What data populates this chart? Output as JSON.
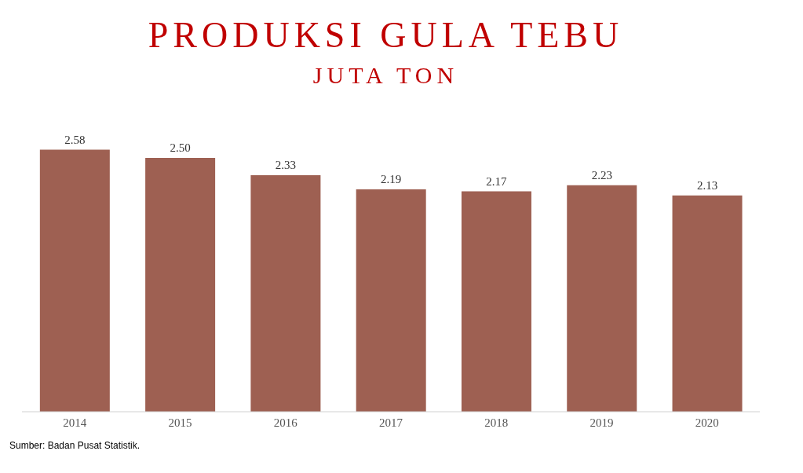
{
  "chart_data": {
    "type": "bar",
    "title": "PRODUKSI GULA TEBU",
    "subtitle": "JUTA TON",
    "categories": [
      "2014",
      "2015",
      "2016",
      "2017",
      "2018",
      "2019",
      "2020"
    ],
    "values": [
      2.58,
      2.5,
      2.33,
      2.19,
      2.17,
      2.23,
      2.13
    ],
    "color": "#9e6052",
    "value_labels": [
      "2.58",
      "2.50",
      "2.33",
      "2.19",
      "2.17",
      "2.23",
      "2.13"
    ],
    "tick_labels": "x",
    "annotations": [
      "Sumber: Badan Pusat Statistik."
    ]
  }
}
